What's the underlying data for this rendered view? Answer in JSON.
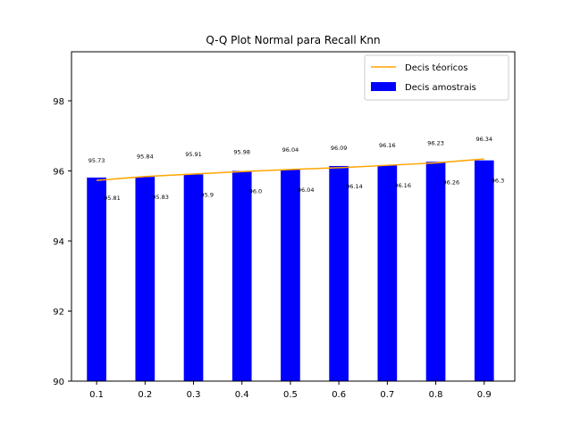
{
  "chart_data": {
    "type": "bar",
    "title": "Q-Q Plot Normal para Recall Knn",
    "xlabel": "",
    "ylabel": "",
    "categories": [
      "0.1",
      "0.2",
      "0.3",
      "0.4",
      "0.5",
      "0.6",
      "0.7",
      "0.8",
      "0.9"
    ],
    "ylim": [
      90,
      99.4
    ],
    "yticks": [
      90,
      92,
      94,
      96,
      98
    ],
    "grid": false,
    "legend_position": "top-right",
    "series": [
      {
        "name": "Decis téoricos",
        "type": "line",
        "color": "#ffa500",
        "values": [
          95.73,
          95.84,
          95.91,
          95.98,
          96.04,
          96.09,
          96.16,
          96.23,
          96.34
        ],
        "labels": [
          "95.73",
          "95.84",
          "95.91",
          "95.98",
          "96.04",
          "96.09",
          "96.16",
          "96.23",
          "96.34"
        ]
      },
      {
        "name": "Decis amostrais",
        "type": "bar",
        "color": "#0000ff",
        "values": [
          95.81,
          95.83,
          95.9,
          96.0,
          96.04,
          96.14,
          96.16,
          96.26,
          96.3
        ],
        "labels": [
          "95.81",
          "95.83",
          "95.9",
          "96.0",
          "96.04",
          "96.14",
          "96.16",
          "96.26",
          "96.3"
        ]
      }
    ]
  }
}
